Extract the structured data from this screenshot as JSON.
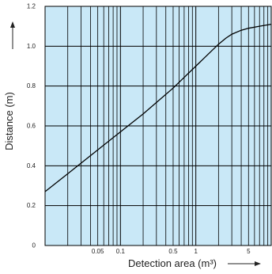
{
  "chart_data": {
    "type": "line",
    "title": "",
    "xlabel": "Detection area (m³)",
    "ylabel": "Distance (m)",
    "x_scale": "log",
    "x_range": [
      0.01,
      10
    ],
    "ylim": [
      0,
      1.2
    ],
    "x_ticks": [
      {
        "value": 0.05,
        "label": "0.05"
      },
      {
        "value": 0.1,
        "label": "0.1"
      },
      {
        "value": 0.5,
        "label": "0.5"
      },
      {
        "value": 1,
        "label": "1"
      },
      {
        "value": 5,
        "label": "5"
      }
    ],
    "y_ticks": [
      {
        "value": 0,
        "label": "0"
      },
      {
        "value": 0.2,
        "label": "0.2"
      },
      {
        "value": 0.4,
        "label": "0.4"
      },
      {
        "value": 0.6,
        "label": "0.6"
      },
      {
        "value": 0.8,
        "label": "0.8"
      },
      {
        "value": 1.0,
        "label": "1.0"
      },
      {
        "value": 1.2,
        "label": "1.2"
      }
    ],
    "grid": true,
    "legend": "none",
    "background_color": "#c9e8f7",
    "grid_color": "#000000",
    "line_color": "#000000",
    "series": [
      {
        "x": [
          0.01,
          0.02,
          0.05,
          0.1,
          0.2,
          0.5,
          1,
          2,
          2.5,
          3,
          4,
          5,
          7,
          10
        ],
        "values": [
          0.27,
          0.36,
          0.48,
          0.57,
          0.66,
          0.79,
          0.9,
          1.01,
          1.04,
          1.06,
          1.08,
          1.09,
          1.1,
          1.11
        ]
      }
    ]
  }
}
